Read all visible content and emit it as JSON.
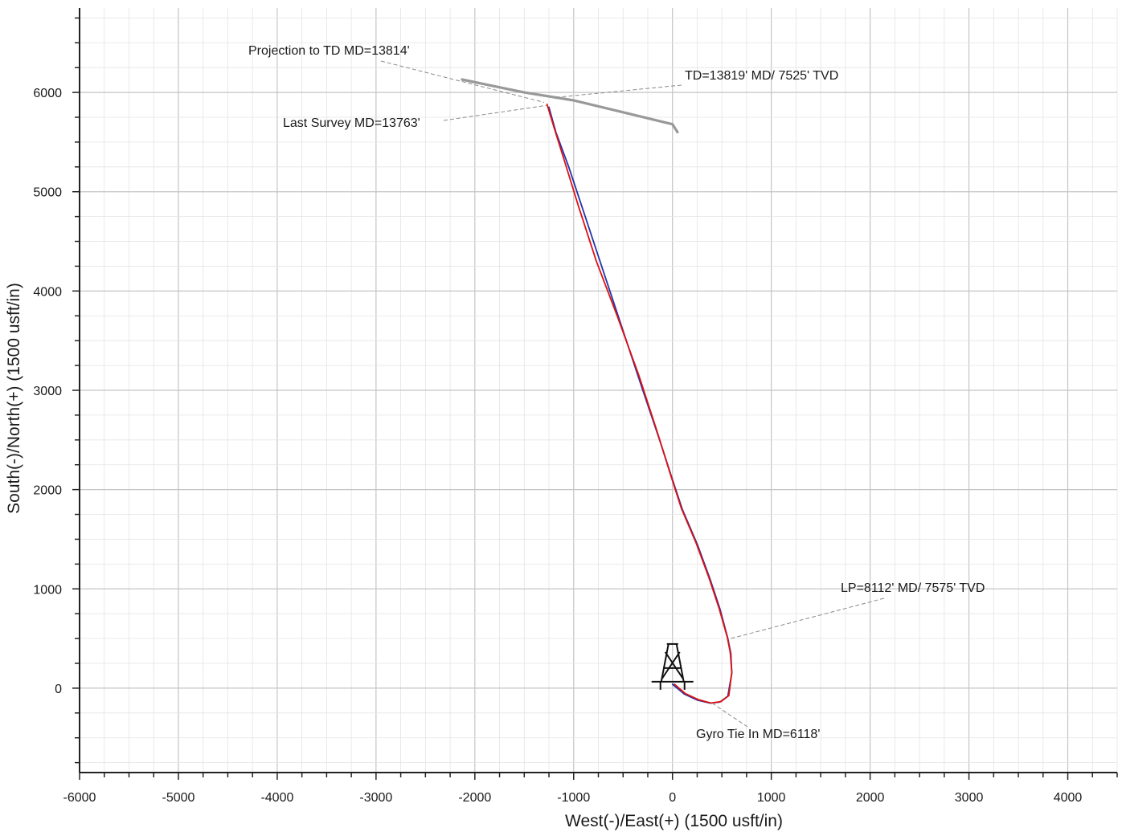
{
  "chart_data": {
    "type": "line",
    "title": "",
    "xlabel": "West(-)/East(+) (1500 usft/in)",
    "ylabel": "South(-)/North(+) (1500 usft/in)",
    "xlim": [
      -6000,
      4500
    ],
    "ylim": [
      -850,
      6850
    ],
    "x_ticks": [
      -6000,
      -5000,
      -4000,
      -3000,
      -2000,
      -1000,
      0,
      1000,
      2000,
      3000,
      4000
    ],
    "y_ticks": [
      0,
      1000,
      2000,
      3000,
      4000,
      5000,
      6000
    ],
    "x_tick_labels": [
      "-6000",
      "-5000",
      "-4000",
      "-3000",
      "-2000",
      "-1000",
      "0",
      "1000",
      "2000",
      "3000",
      "4000"
    ],
    "y_tick_labels": [
      "0",
      "1000",
      "2000",
      "3000",
      "4000",
      "5000",
      "6000"
    ],
    "grid": true,
    "series": [
      {
        "color": "#2233aa",
        "x": [
          0,
          120,
          250,
          380,
          480,
          560,
          600,
          590,
          560,
          480,
          380,
          250,
          100,
          0,
          -130,
          -300,
          -500,
          -700,
          -900,
          -1050,
          -1180,
          -1250
        ],
        "y": [
          40,
          -60,
          -120,
          -150,
          -140,
          -80,
          150,
          350,
          500,
          800,
          1100,
          1450,
          1800,
          2100,
          2500,
          3000,
          3600,
          4200,
          4800,
          5250,
          5600,
          5850
        ]
      },
      {
        "color": "#dd1111",
        "x": [
          20,
          130,
          260,
          390,
          490,
          570,
          600,
          585,
          555,
          470,
          370,
          240,
          90,
          -20,
          -160,
          -340,
          -560,
          -770,
          -950,
          -1090,
          -1200,
          -1270
        ],
        "y": [
          40,
          -55,
          -115,
          -150,
          -135,
          -75,
          160,
          360,
          510,
          810,
          1110,
          1460,
          1810,
          2150,
          2600,
          3150,
          3750,
          4300,
          4850,
          5300,
          5650,
          5880
        ]
      },
      {
        "color": "#999999",
        "x": [
          -2130,
          -1500,
          -1000,
          -500,
          0,
          50
        ],
        "y": [
          6130,
          6000,
          5920,
          5800,
          5680,
          5600
        ]
      }
    ],
    "annotations": [
      {
        "text": "Projection to TD MD=13814'",
        "x": -1300,
        "y": 5900
      },
      {
        "text": "TD=13819' MD/ 7525' TVD",
        "x": -1180,
        "y": 5950
      },
      {
        "text": "Last Survey MD=13763'",
        "x": -1270,
        "y": 5870
      },
      {
        "text": "LP=8112' MD/ 7575' TVD",
        "x": 590,
        "y": 500
      },
      {
        "text": "Gyro Tie In MD=6118'",
        "x": 400,
        "y": -150
      }
    ],
    "legend": "none"
  }
}
